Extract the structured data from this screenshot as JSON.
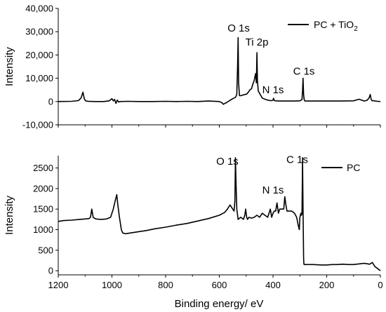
{
  "chart_data": [
    {
      "type": "line",
      "ylabel": "Intensity",
      "xlabel": "",
      "xlim": [
        1200,
        0
      ],
      "ylim": [
        -10000,
        40000
      ],
      "y_ticks": [
        -10000,
        0,
        10000,
        20000,
        30000,
        40000
      ],
      "y_tick_labels": [
        "-10,000",
        "0",
        "10,000",
        "20,000",
        "30,000",
        "40,000"
      ],
      "legend_position": "top-right",
      "annotations": [
        {
          "text": "O 1s",
          "x": 528,
          "y": 30000
        },
        {
          "text": "Ti 2p",
          "x": 460,
          "y": 24000
        },
        {
          "text": "N 1s",
          "x": 400,
          "y": 3500
        },
        {
          "text": "C 1s",
          "x": 285,
          "y": 11500
        }
      ],
      "series": [
        {
          "name": "PC + TiO",
          "name_subscript": "2",
          "x": [
            1200,
            1150,
            1125,
            1115,
            1108,
            1103,
            1098,
            1090,
            1060,
            1030,
            1010,
            1000,
            995,
            990,
            985,
            980,
            975,
            970,
            940,
            900,
            850,
            800,
            760,
            720,
            680,
            640,
            600,
            590,
            585,
            580,
            575,
            570,
            560,
            550,
            540,
            535,
            532,
            530,
            528,
            525,
            520,
            512,
            505,
            498,
            492,
            486,
            480,
            475,
            470,
            465,
            462,
            460,
            458,
            455,
            450,
            440,
            430,
            420,
            410,
            405,
            400,
            398,
            395,
            390,
            380,
            370,
            350,
            320,
            300,
            292,
            290,
            288,
            286,
            284,
            282,
            280,
            270,
            250,
            200,
            150,
            100,
            80,
            60,
            50,
            42,
            38,
            34,
            30,
            25,
            20,
            10,
            0
          ],
          "y": [
            0,
            100,
            400,
            1500,
            4000,
            1200,
            300,
            100,
            0,
            0,
            300,
            1200,
            300,
            900,
            -800,
            600,
            -200,
            0,
            100,
            0,
            0,
            100,
            0,
            100,
            0,
            200,
            0,
            -500,
            -1200,
            -800,
            -600,
            -200,
            500,
            1200,
            1800,
            3000,
            15000,
            27500,
            8000,
            2500,
            2500,
            2800,
            3000,
            3200,
            4000,
            5000,
            5500,
            7500,
            9000,
            12000,
            8000,
            21000,
            9000,
            4500,
            3500,
            1500,
            1000,
            600,
            400,
            400,
            600,
            1400,
            400,
            300,
            200,
            200,
            200,
            200,
            300,
            800,
            4500,
            10000,
            3000,
            800,
            300,
            200,
            200,
            200,
            200,
            200,
            300,
            1000,
            200,
            500,
            1500,
            3000,
            800,
            300,
            400,
            200,
            100,
            0
          ]
        }
      ]
    },
    {
      "type": "line",
      "ylabel": "Intensity",
      "xlabel": "Binding energy/ eV",
      "xlim": [
        1200,
        0
      ],
      "ylim": [
        -100,
        2800
      ],
      "x_ticks": [
        1200,
        1000,
        800,
        600,
        400,
        200,
        0
      ],
      "x_tick_labels": [
        "1200",
        "1000",
        "800",
        "600",
        "400",
        "200",
        "0"
      ],
      "y_ticks": [
        0,
        500,
        1000,
        1500,
        2000,
        2500
      ],
      "y_tick_labels": [
        "0",
        "500",
        "1000",
        "1500",
        "2000",
        "2500"
      ],
      "legend_position": "top-right",
      "annotations": [
        {
          "text": "O 1s",
          "x": 570,
          "y": 2580
        },
        {
          "text": "N 1s",
          "x": 400,
          "y": 1880
        },
        {
          "text": "C 1s",
          "x": 310,
          "y": 2620
        }
      ],
      "series": [
        {
          "name": "PC",
          "x": [
            1200,
            1180,
            1150,
            1120,
            1100,
            1085,
            1080,
            1075,
            1070,
            1060,
            1040,
            1020,
            1005,
            995,
            988,
            982,
            978,
            972,
            965,
            960,
            950,
            930,
            900,
            870,
            840,
            800,
            760,
            720,
            680,
            640,
            600,
            580,
            570,
            560,
            550,
            545,
            542,
            540,
            538,
            535,
            530,
            520,
            510,
            505,
            502,
            498,
            495,
            490,
            480,
            470,
            460,
            450,
            440,
            430,
            420,
            415,
            410,
            405,
            400,
            395,
            390,
            385,
            380,
            375,
            370,
            365,
            360,
            356,
            352,
            348,
            340,
            330,
            320,
            312,
            306,
            302,
            300,
            298,
            296,
            294,
            292,
            290,
            288,
            286,
            285,
            284,
            283,
            282,
            280,
            270,
            250,
            220,
            200,
            180,
            160,
            140,
            120,
            100,
            60,
            40,
            30,
            20,
            10,
            0
          ],
          "y": [
            1200,
            1220,
            1230,
            1250,
            1260,
            1270,
            1300,
            1500,
            1300,
            1260,
            1250,
            1260,
            1300,
            1500,
            1700,
            1850,
            1600,
            1300,
            1000,
            920,
            900,
            920,
            950,
            980,
            1020,
            1060,
            1110,
            1150,
            1210,
            1270,
            1350,
            1420,
            1500,
            1600,
            1500,
            1450,
            1700,
            2750,
            2200,
            1500,
            1250,
            1300,
            1250,
            1350,
            1500,
            1300,
            1250,
            1300,
            1280,
            1300,
            1350,
            1300,
            1400,
            1350,
            1300,
            1400,
            1500,
            1300,
            1400,
            1450,
            1450,
            1650,
            1400,
            1500,
            1500,
            1500,
            1500,
            1800,
            1600,
            1450,
            1450,
            1450,
            1400,
            1300,
            1100,
            1000,
            1300,
            1350,
            1400,
            1350,
            1400,
            2750,
            1500,
            300,
            170,
            150,
            150,
            150,
            150,
            150,
            150,
            140,
            140,
            150,
            150,
            160,
            150,
            150,
            180,
            160,
            200,
            100,
            50,
            0
          ]
        }
      ]
    }
  ]
}
